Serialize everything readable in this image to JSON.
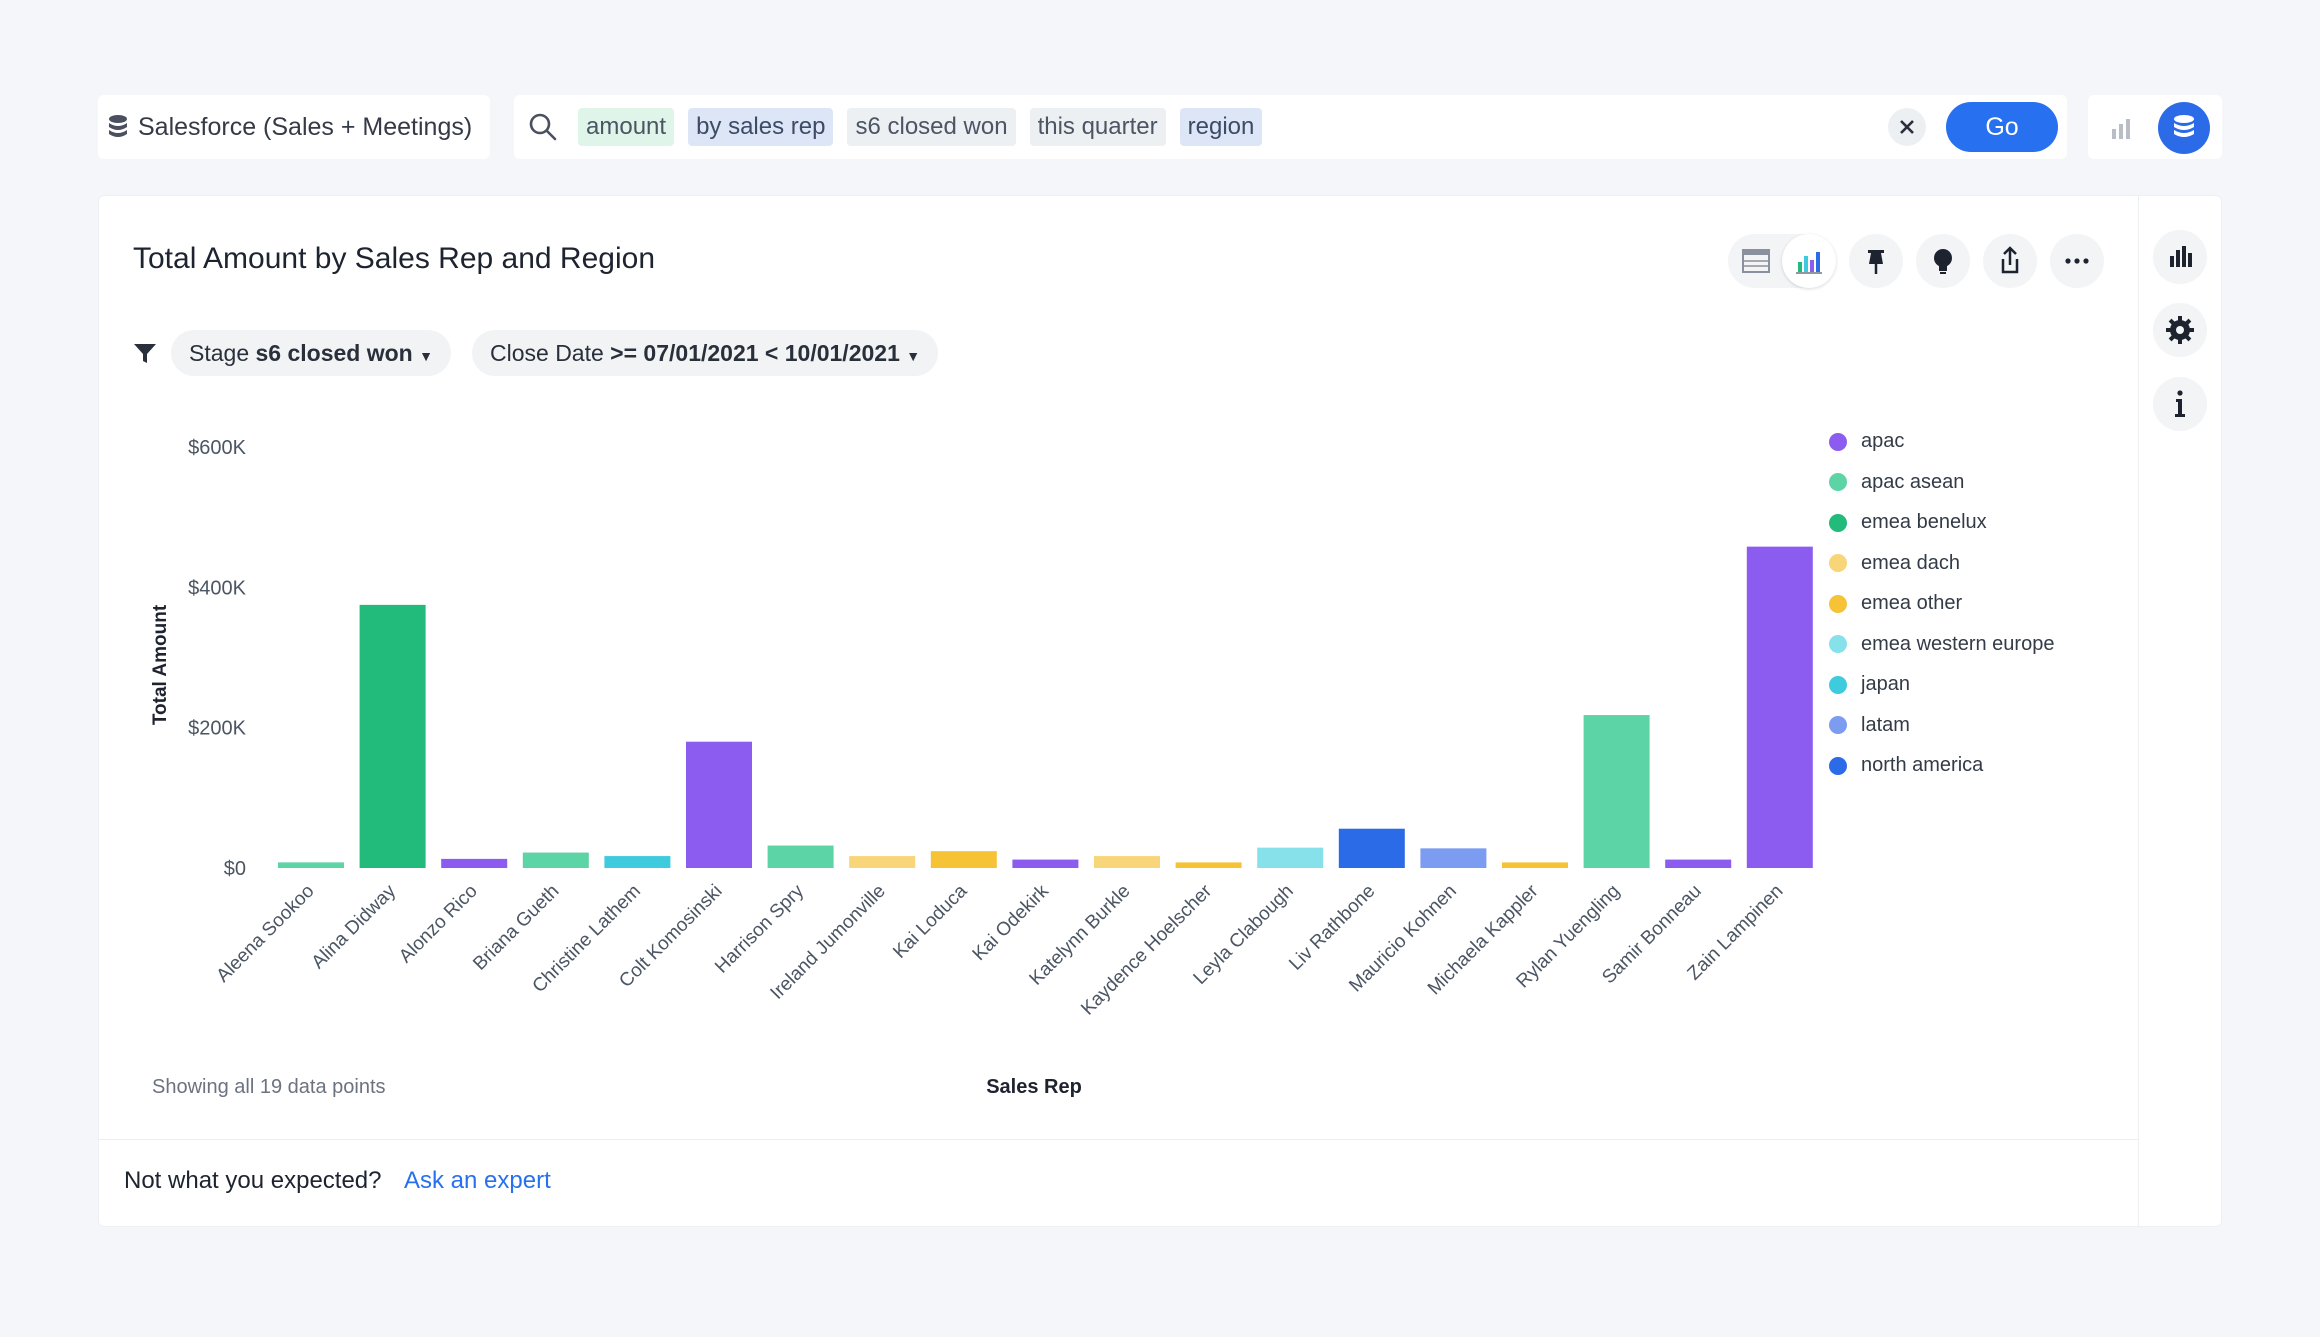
{
  "source": {
    "label": "Salesforce (Sales + Meetings)"
  },
  "search": {
    "tokens": [
      {
        "text": "amount",
        "kind": "measure"
      },
      {
        "text": "by sales rep",
        "kind": "attr"
      },
      {
        "text": "s6 closed won",
        "kind": "plain"
      },
      {
        "text": "this quarter",
        "kind": "plain"
      },
      {
        "text": "region",
        "kind": "attr"
      }
    ],
    "go_label": "Go"
  },
  "answer": {
    "title": "Total Amount by Sales Rep and Region"
  },
  "filters": {
    "stage_label": "Stage",
    "stage_value": "s6 closed won",
    "date_label": "Close Date",
    "date_value": ">= 07/01/2021 < 10/01/2021"
  },
  "footer": {
    "showing": "Showing all 19 data points",
    "not_expected": "Not what you expected?",
    "ask_expert": "Ask an expert"
  },
  "colors": {
    "apac": "#8c5cf0",
    "apac asean": "#5dd4a6",
    "emea benelux": "#23bb7b",
    "emea dach": "#f7d578",
    "emea other": "#f6c337",
    "emea western europe": "#86e1ea",
    "japan": "#3ecbdd",
    "latam": "#7b9cf0",
    "north america": "#2c6be8"
  },
  "chart_data": {
    "type": "bar",
    "xlabel": "Sales Rep",
    "ylabel": "Total Amount",
    "ylim": [
      0,
      600000
    ],
    "yticks": [
      {
        "value": 0,
        "label": "$0"
      },
      {
        "value": 200000,
        "label": "$200K"
      },
      {
        "value": 400000,
        "label": "$400K"
      },
      {
        "value": 600000,
        "label": "$600K"
      }
    ],
    "legend": [
      "apac",
      "apac asean",
      "emea benelux",
      "emea dach",
      "emea other",
      "emea western europe",
      "japan",
      "latam",
      "north america"
    ],
    "legend_position": "right",
    "bars": [
      {
        "rep": "Aleena Sookoo",
        "region": "apac asean",
        "value": 8000
      },
      {
        "rep": "Alina Didway",
        "region": "emea benelux",
        "value": 375000
      },
      {
        "rep": "Alonzo Rico",
        "region": "apac",
        "value": 13000
      },
      {
        "rep": "Briana Gueth",
        "region": "apac asean",
        "value": 22000
      },
      {
        "rep": "Christine Lathem",
        "region": "japan",
        "value": 17000
      },
      {
        "rep": "Colt Komosinski",
        "region": "apac",
        "value": 180000
      },
      {
        "rep": "Harrison Spry",
        "region": "apac asean",
        "value": 32000
      },
      {
        "rep": "Ireland Jumonville",
        "region": "emea dach",
        "value": 17000
      },
      {
        "rep": "Kai Loduca",
        "region": "emea other",
        "value": 24000
      },
      {
        "rep": "Kai Odekirk",
        "region": "apac",
        "value": 12000
      },
      {
        "rep": "Katelynn Burkle",
        "region": "emea dach",
        "value": 17000
      },
      {
        "rep": "Kaydence Hoelscher",
        "region": "emea other",
        "value": 8000
      },
      {
        "rep": "Leyla Clabough",
        "region": "emea western europe",
        "value": 29000
      },
      {
        "rep": "Liv Rathbone",
        "region": "north america",
        "value": 56000
      },
      {
        "rep": "Mauricio Kohnen",
        "region": "latam",
        "value": 28000
      },
      {
        "rep": "Michaela Kappler",
        "region": "emea other",
        "value": 8000
      },
      {
        "rep": "Rylan Yuengling",
        "region": "apac asean",
        "value": 218000
      },
      {
        "rep": "Samir Bonneau",
        "region": "apac",
        "value": 12000
      },
      {
        "rep": "Zain Lampinen",
        "region": "apac",
        "value": 458000
      }
    ]
  }
}
